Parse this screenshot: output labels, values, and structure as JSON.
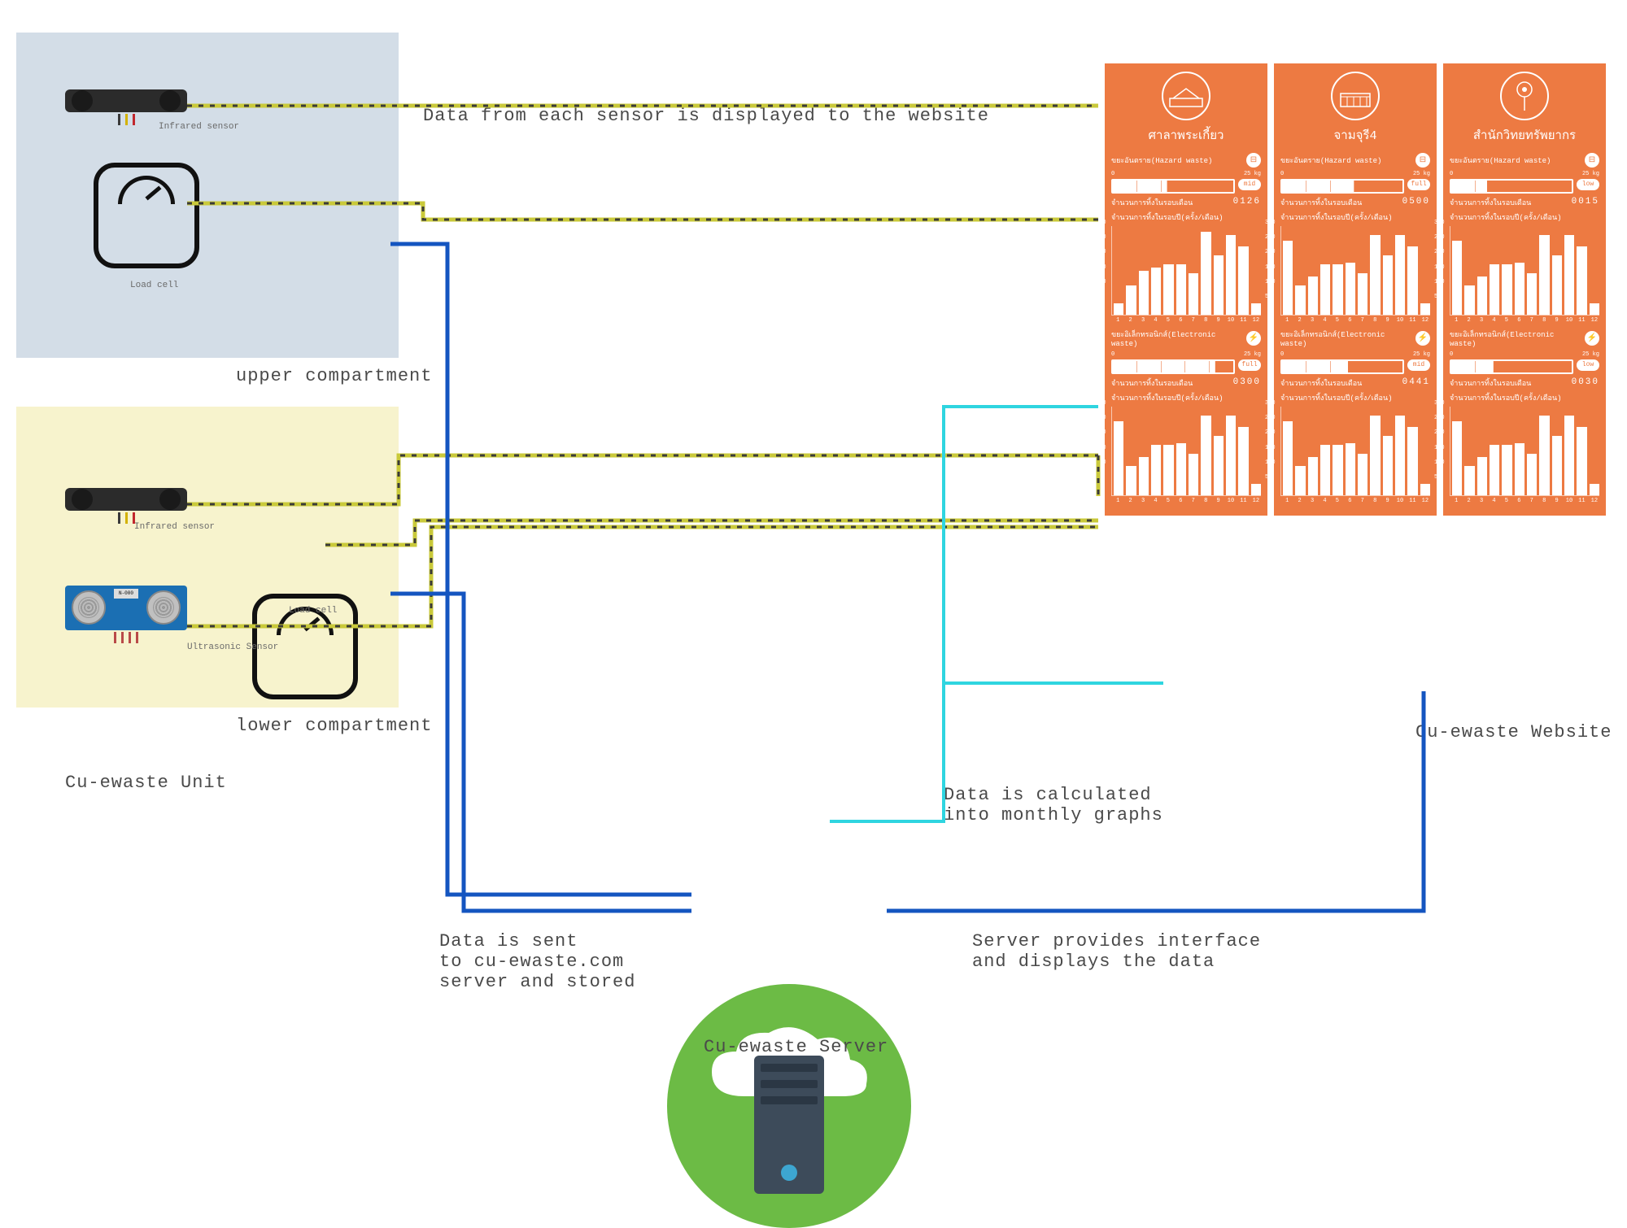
{
  "colors": {
    "upper_bg": "#d3dde7",
    "lower_bg": "#f7f3cd",
    "panel_bg": "#ed7a42",
    "server_green": "#6cbb45",
    "server_body": "#3d4b5a",
    "wire_yellow": "#c9c93a",
    "wire_yellow_dash": "#3a3a3a",
    "wire_blue": "#1455c0",
    "wire_cyan": "#2fd5e0",
    "text": "#4a4a4a"
  },
  "unit": {
    "title": "Cu-ewaste Unit",
    "upper_label": "upper compartment",
    "lower_label": "lower compartment",
    "sensors": {
      "infrared": "Infrared sensor",
      "loadcell": "Load cell",
      "ultrasonic": "Ultrasonic Sensor"
    },
    "pin_colors": [
      "#3a3a3a",
      "#d3b200",
      "#c1272d"
    ]
  },
  "captions": {
    "top": "Data from each sensor is displayed to the website",
    "data_sent": "Data is sent\nto cu-ewaste.com\nserver and stored",
    "calc": "Data is calculated\ninto monthly graphs",
    "interface": "Server provides interface\nand displays the data"
  },
  "server": {
    "title": "Cu-ewaste Server"
  },
  "website": {
    "title": "Cu-ewaste Website",
    "chart_ylim": [
      0,
      300
    ],
    "chart_yticks": [
      50,
      100,
      150,
      200,
      250,
      300
    ],
    "chart_xlabels": [
      "1",
      "2",
      "3",
      "4",
      "5",
      "6",
      "7",
      "8",
      "9",
      "10",
      "11",
      "12"
    ],
    "gauge_min": "0",
    "gauge_max": "25 kg",
    "panels": [
      {
        "name": "ศาลาพระเกี้ยว",
        "icon": "building",
        "sections": [
          {
            "type": "ขยะอันตราย(Hazard waste)",
            "badge": "⊟",
            "gauge_fill": 0.45,
            "status": "mid",
            "count_label": "จำนวนการทิ้งในรอบเดือน",
            "count": "0126",
            "chart_label": "จำนวนการทิ้งในรอบปี(ครั้ง/เดือน)",
            "bars": [
              40,
              100,
              150,
              160,
              170,
              170,
              140,
              280,
              200,
              270,
              230,
              40
            ]
          },
          {
            "type": "ขยะอิเล็กทรอนิกส์(Electronic waste)",
            "badge": "⚡",
            "gauge_fill": 0.85,
            "status": "full",
            "count_label": "จำนวนการทิ้งในรอบเดือน",
            "count": "0300",
            "chart_label": "จำนวนการทิ้งในรอบปี(ครั้ง/เดือน)",
            "bars": [
              250,
              100,
              130,
              170,
              170,
              175,
              140,
              270,
              200,
              270,
              230,
              40
            ]
          }
        ]
      },
      {
        "name": "จามจุรี4",
        "icon": "building2",
        "sections": [
          {
            "type": "ขยะอันตราย(Hazard waste)",
            "badge": "⊟",
            "gauge_fill": 0.6,
            "status": "full",
            "count_label": "จำนวนการทิ้งในรอบเดือน",
            "count": "0500",
            "chart_label": "จำนวนการทิ้งในรอบปี(ครั้ง/เดือน)",
            "bars": [
              250,
              100,
              130,
              170,
              170,
              175,
              140,
              270,
              200,
              270,
              230,
              40
            ]
          },
          {
            "type": "ขยะอิเล็กทรอนิกส์(Electronic waste)",
            "badge": "⚡",
            "gauge_fill": 0.55,
            "status": "mid",
            "count_label": "จำนวนการทิ้งในรอบเดือน",
            "count": "0441",
            "chart_label": "จำนวนการทิ้งในรอบปี(ครั้ง/เดือน)",
            "bars": [
              250,
              100,
              130,
              170,
              170,
              175,
              140,
              270,
              200,
              270,
              230,
              40
            ]
          }
        ]
      },
      {
        "name": "สำนักวิทยทรัพยากร",
        "icon": "tree",
        "sections": [
          {
            "type": "ขยะอันตราย(Hazard waste)",
            "badge": "⊟",
            "gauge_fill": 0.3,
            "status": "low",
            "count_label": "จำนวนการทิ้งในรอบเดือน",
            "count": "0015",
            "chart_label": "จำนวนการทิ้งในรอบปี(ครั้ง/เดือน)",
            "bars": [
              250,
              100,
              130,
              170,
              170,
              175,
              140,
              270,
              200,
              270,
              230,
              40
            ]
          },
          {
            "type": "ขยะอิเล็กทรอนิกส์(Electronic waste)",
            "badge": "⚡",
            "gauge_fill": 0.35,
            "status": "low",
            "count_label": "จำนวนการทิ้งในรอบเดือน",
            "count": "0030",
            "chart_label": "จำนวนการทิ้งในรอบปี(ครั้ง/เดือน)",
            "bars": [
              250,
              100,
              130,
              170,
              170,
              175,
              140,
              270,
              200,
              270,
              230,
              40
            ]
          }
        ]
      }
    ]
  },
  "wires": {
    "yellow": [
      "M 230 130 H 1350",
      "M 230 250 H 520 V 270 H 1350",
      "M 230 620 H 490 V 560 H 1350 M 1350 560 V 610",
      "M 400 670 H 510 V 640 H 1350",
      "M 230 770 H 530 V 648 H 1350"
    ],
    "blue": [
      "M 480 300 H 550 V 1100 H 850",
      "M 480 730 H 570 V 1120 H 850",
      "M 1090 1120 H 1750 V 850"
    ],
    "cyan": [
      "M 1020 1010 H 1160 V 500 H 1350",
      "M 1160 840 H 1430"
    ]
  }
}
